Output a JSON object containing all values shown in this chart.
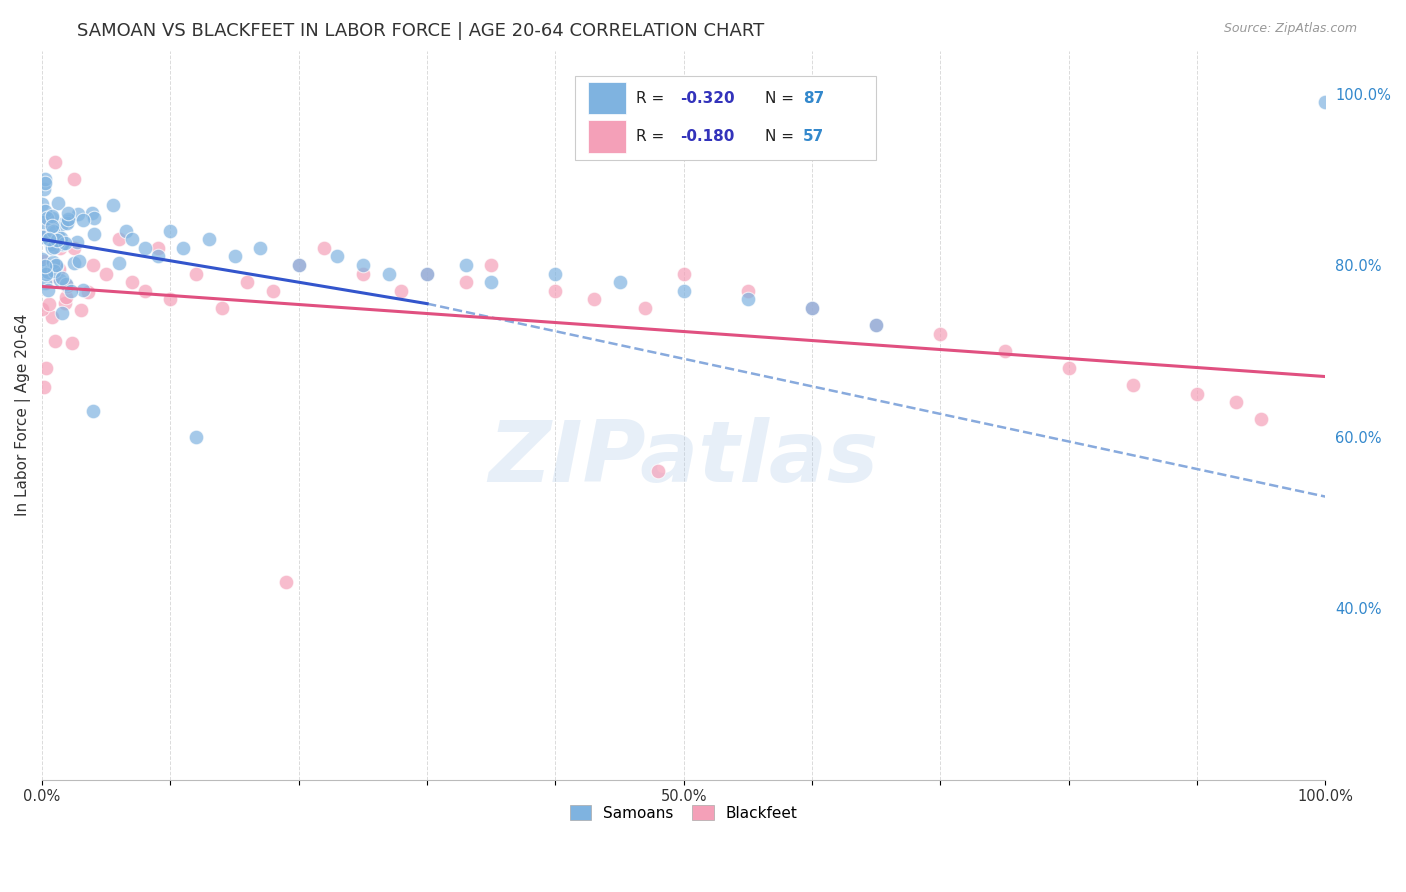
{
  "title": "SAMOAN VS BLACKFEET IN LABOR FORCE | AGE 20-64 CORRELATION CHART",
  "source": "Source: ZipAtlas.com",
  "ylabel": "In Labor Force | Age 20-64",
  "background_color": "#ffffff",
  "grid_color": "#cccccc",
  "samoans_color": "#7fb3e0",
  "blackfeet_color": "#f4a0b8",
  "samoans_line_color": "#3355cc",
  "samoans_dash_color": "#88aadd",
  "blackfeet_line_color": "#e05080",
  "legend_label_color": "#222222",
  "legend_R_color": "#3333bb",
  "legend_N_color": "#3388cc",
  "right_axis_color": "#3388cc",
  "x_tick_labels": [
    "0.0%",
    "",
    "",
    "",
    "",
    "50.0%",
    "",
    "",
    "",
    "",
    "100.0%"
  ],
  "right_ytick_labels": [
    "100.0%",
    "80.0%",
    "60.0%",
    "40.0%"
  ],
  "right_ytick_vals": [
    1.0,
    0.8,
    0.6,
    0.4
  ],
  "watermark": "ZIPatlas",
  "samoans_R": -0.32,
  "samoans_N": 87,
  "blackfeet_R": -0.18,
  "blackfeet_N": 57,
  "sam_trend": [
    0.0,
    0.3,
    0.83,
    0.755
  ],
  "sam_dash": [
    0.3,
    1.0,
    0.755,
    0.53
  ],
  "blk_trend": [
    0.0,
    1.0,
    0.775,
    0.67
  ],
  "ylim": [
    0.2,
    1.05
  ],
  "xlim": [
    0.0,
    1.0
  ]
}
